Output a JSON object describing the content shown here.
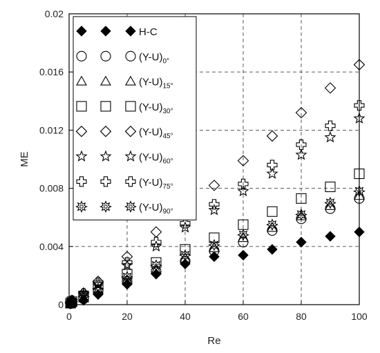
{
  "chart_data": {
    "type": "scatter",
    "xlabel": "Re",
    "ylabel": "ME",
    "xlim": [
      0,
      100
    ],
    "ylim": [
      0,
      0.02
    ],
    "xticks": [
      "0",
      "20",
      "40",
      "60",
      "80",
      "100"
    ],
    "yticks": [
      "0",
      "0.004",
      "0.008",
      "0.012",
      "0.016",
      "0.02"
    ],
    "grid": "dashed",
    "legend_position": "top-left",
    "series": [
      {
        "name": "H-C",
        "sup": "",
        "marker": "filled-diamond",
        "x": [
          0.5,
          1,
          5,
          10,
          20,
          30,
          40,
          50,
          60,
          70,
          80,
          90,
          100
        ],
        "y": [
          5e-05,
          0.0001,
          0.0003,
          0.0007,
          0.0014,
          0.0021,
          0.0028,
          0.0033,
          0.0034,
          0.0038,
          0.0043,
          0.0047,
          0.005
        ]
      },
      {
        "name": "(Y-U)",
        "sup": "0°",
        "marker": "circle",
        "x": [
          0.5,
          1,
          5,
          10,
          20,
          30,
          40,
          50,
          60,
          70,
          80,
          90,
          100
        ],
        "y": [
          7e-05,
          0.00015,
          0.0004,
          0.0009,
          0.0016,
          0.0023,
          0.003,
          0.0037,
          0.0043,
          0.0051,
          0.0059,
          0.0066,
          0.0073
        ]
      },
      {
        "name": "(Y-U)",
        "sup": "15°",
        "marker": "triangle",
        "x": [
          0.5,
          1,
          5,
          10,
          20,
          30,
          40,
          50,
          60,
          70,
          80,
          90,
          100
        ],
        "y": [
          8e-05,
          0.00016,
          0.00045,
          0.001,
          0.0017,
          0.0024,
          0.0032,
          0.0039,
          0.0046,
          0.0053,
          0.0061,
          0.0068,
          0.0075
        ]
      },
      {
        "name": "(Y-U)",
        "sup": "30°",
        "marker": "square",
        "x": [
          0.5,
          1,
          5,
          10,
          20,
          30,
          40,
          50,
          60,
          70,
          80,
          90,
          100
        ],
        "y": [
          0.0001,
          0.0002,
          0.0006,
          0.0012,
          0.0021,
          0.0029,
          0.0038,
          0.0046,
          0.0055,
          0.0064,
          0.0073,
          0.0081,
          0.009
        ]
      },
      {
        "name": "(Y-U)",
        "sup": "45°",
        "marker": "diamond",
        "x": [
          0.5,
          1,
          5,
          10,
          20,
          30,
          40,
          50,
          60,
          70,
          80,
          90,
          100
        ],
        "y": [
          0.00015,
          0.0003,
          0.0008,
          0.0016,
          0.0033,
          0.005,
          0.0066,
          0.0082,
          0.0099,
          0.0116,
          0.0132,
          0.0149,
          0.0165
        ]
      },
      {
        "name": "(Y-U)",
        "sup": "60°",
        "marker": "star",
        "x": [
          0.5,
          1,
          5,
          10,
          20,
          30,
          40,
          50,
          60,
          70,
          80,
          90,
          100
        ],
        "y": [
          0.00012,
          0.00025,
          0.0007,
          0.0014,
          0.0027,
          0.004,
          0.0053,
          0.0065,
          0.0078,
          0.009,
          0.0103,
          0.0115,
          0.0128
        ]
      },
      {
        "name": "(Y-U)",
        "sup": "75°",
        "marker": "cross",
        "x": [
          0.5,
          1,
          5,
          10,
          20,
          30,
          40,
          50,
          60,
          70,
          80,
          90,
          100
        ],
        "y": [
          0.00013,
          0.00027,
          0.00075,
          0.0015,
          0.0029,
          0.0043,
          0.0056,
          0.0069,
          0.0083,
          0.0096,
          0.011,
          0.0123,
          0.0137
        ]
      },
      {
        "name": "(Y-U)",
        "sup": "90°",
        "marker": "spiky-star",
        "x": [
          0.5,
          1,
          5,
          10,
          20,
          30,
          40,
          50,
          60,
          70,
          80,
          90,
          100
        ],
        "y": [
          0.0001,
          0.0002,
          0.00055,
          0.0011,
          0.0019,
          0.0027,
          0.0034,
          0.0041,
          0.0048,
          0.0055,
          0.0062,
          0.007,
          0.0078
        ]
      }
    ]
  }
}
